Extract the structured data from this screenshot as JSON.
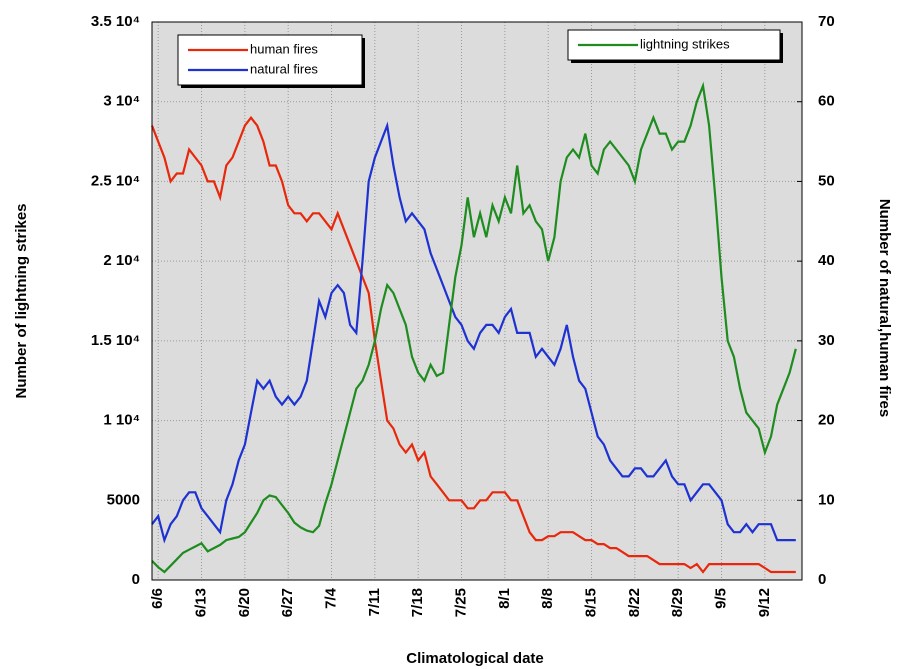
{
  "chart_data": {
    "type": "line",
    "xlabel": "Climatological date",
    "ylabel": "Number of lightning strikes",
    "y2label": "Number of natural,human fires",
    "categories": [
      null,
      "6/6",
      null,
      null,
      null,
      null,
      null,
      null,
      "6/13",
      null,
      null,
      null,
      null,
      null,
      null,
      "6/20",
      null,
      null,
      null,
      null,
      null,
      null,
      "6/27",
      null,
      null,
      null,
      null,
      null,
      null,
      "7/4",
      null,
      null,
      null,
      null,
      null,
      null,
      "7/11",
      null,
      null,
      null,
      null,
      null,
      null,
      "7/18",
      null,
      null,
      null,
      null,
      null,
      null,
      "7/25",
      null,
      null,
      null,
      null,
      null,
      null,
      "8/1",
      null,
      null,
      null,
      null,
      null,
      null,
      "8/8",
      null,
      null,
      null,
      null,
      null,
      null,
      "8/15",
      null,
      null,
      null,
      null,
      null,
      null,
      "8/22",
      null,
      null,
      null,
      null,
      null,
      null,
      "8/29",
      null,
      null,
      null,
      null,
      null,
      null,
      "9/5",
      null,
      null,
      null,
      null,
      null,
      null,
      "9/12",
      null,
      null,
      null,
      null,
      null
    ],
    "series": [
      {
        "name": "human fires",
        "color": "#e8280c",
        "axis": "y2",
        "values": [
          57,
          55,
          53,
          50,
          51,
          51,
          54,
          53,
          52,
          50,
          50,
          48,
          52,
          53,
          55,
          57,
          58,
          57,
          55,
          52,
          52,
          50,
          47,
          46,
          46,
          45,
          46,
          46,
          45,
          44,
          46,
          44,
          42,
          40,
          38,
          36,
          30,
          25,
          20,
          19,
          17,
          16,
          17,
          15,
          16,
          13,
          12,
          11,
          10,
          10,
          10,
          9,
          9,
          10,
          10,
          11,
          11,
          11,
          10,
          10,
          8,
          6,
          5,
          5,
          5.5,
          5.5,
          6,
          6,
          6,
          5.5,
          5,
          5,
          4.5,
          4.5,
          4,
          4,
          3.5,
          3,
          3,
          3,
          3,
          2.5,
          2,
          2,
          2,
          2,
          2,
          1.5,
          2,
          1,
          2,
          2,
          2,
          2,
          2,
          2,
          2,
          2,
          2,
          1.5,
          1,
          1,
          1,
          1,
          1
        ]
      },
      {
        "name": "natural fires",
        "color": "#1e32d2",
        "axis": "y2",
        "values": [
          7,
          8,
          5,
          7,
          8,
          10,
          11,
          11,
          9,
          8,
          7,
          6,
          10,
          12,
          15,
          17,
          21,
          25,
          24,
          25,
          23,
          22,
          23,
          22,
          23,
          25,
          30,
          35,
          33,
          36,
          37,
          36,
          32,
          31,
          40,
          50,
          53,
          55,
          57,
          52,
          48,
          45,
          46,
          45,
          44,
          41,
          39,
          37,
          35,
          33,
          32,
          30,
          29,
          31,
          32,
          32,
          31,
          33,
          34,
          31,
          31,
          31,
          28,
          29,
          28,
          27,
          29,
          32,
          28,
          25,
          24,
          21,
          18,
          17,
          15,
          14,
          13,
          13,
          14,
          14,
          13,
          13,
          14,
          15,
          13,
          12,
          12,
          10,
          11,
          12,
          12,
          11,
          10,
          7,
          6,
          6,
          7,
          6,
          7,
          7,
          7,
          5,
          5,
          5,
          5
        ]
      },
      {
        "name": "lightning strikes",
        "color": "#1e8c1e",
        "axis": "y",
        "values": [
          1200,
          800,
          500,
          900,
          1300,
          1700,
          1900,
          2100,
          2300,
          1800,
          2000,
          2200,
          2500,
          2600,
          2700,
          3000,
          3600,
          4200,
          5000,
          5300,
          5200,
          4700,
          4200,
          3600,
          3300,
          3100,
          3000,
          3400,
          4800,
          6000,
          7500,
          9000,
          10500,
          12000,
          12500,
          13500,
          15000,
          17000,
          18500,
          18000,
          17000,
          16000,
          14000,
          13000,
          12500,
          13500,
          12800,
          13000,
          16000,
          19000,
          21000,
          24000,
          21500,
          23000,
          21500,
          23500,
          22500,
          24000,
          23000,
          26000,
          23000,
          23500,
          22500,
          22000,
          20000,
          21500,
          25000,
          26500,
          27000,
          26500,
          28000,
          26000,
          25500,
          27000,
          27500,
          27000,
          26500,
          26000,
          25000,
          27000,
          28000,
          29000,
          28000,
          28000,
          27000,
          27500,
          27500,
          28500,
          30000,
          31000,
          28500,
          24000,
          19000,
          15000,
          14000,
          12000,
          10500,
          10000,
          9500,
          8000,
          9000,
          11000,
          12000,
          13000,
          14500
        ]
      }
    ],
    "ylim": [
      0,
      35000
    ],
    "yticks": [
      0,
      5000,
      {
        "value": 10000,
        "label": "1 10⁴"
      },
      {
        "value": 15000,
        "label": "1.5 10⁴"
      },
      {
        "value": 20000,
        "label": "2 10⁴"
      },
      {
        "value": 25000,
        "label": "2.5 10⁴"
      },
      {
        "value": 30000,
        "label": "3 10⁴"
      },
      {
        "value": 35000,
        "label": "3.5 10⁴"
      }
    ],
    "y2lim": [
      0,
      70
    ],
    "y2ticks": [
      0,
      10,
      20,
      30,
      40,
      50,
      60,
      70
    ],
    "grid": true,
    "legend": "upper left",
    "legend2": "upper right"
  }
}
